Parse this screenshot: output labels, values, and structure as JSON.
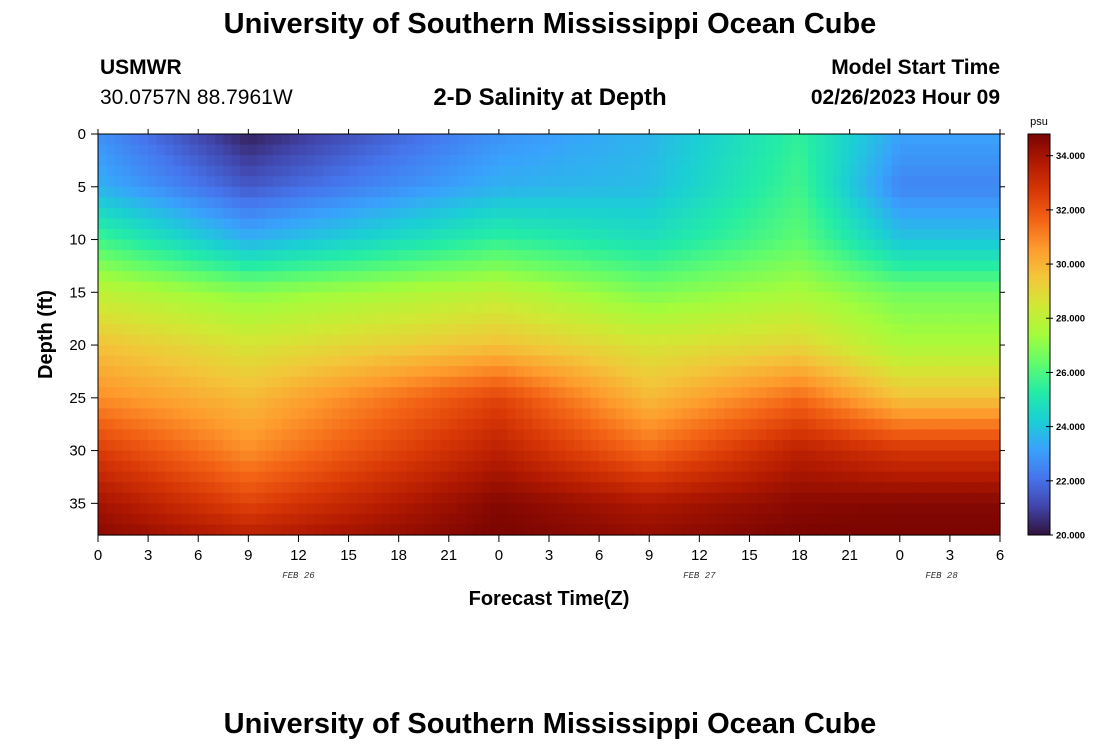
{
  "page": {
    "title_top": "University of Southern Mississippi Ocean Cube",
    "title_bottom": "University of Southern Mississippi Ocean Cube",
    "station": "USMWR",
    "coords": "30.0757N  88.7961W",
    "subtitle": "2-D Salinity at Depth",
    "model_label": "Model Start Time",
    "model_time": "02/26/2023 Hour 09"
  },
  "colors": {
    "colormap": [
      "#30123b",
      "#4145ab",
      "#4675ed",
      "#39a2fc",
      "#1bcfd4",
      "#24eca6",
      "#61fc6c",
      "#a4fc3b",
      "#d1e834",
      "#f3c63a",
      "#fe9b2d",
      "#f36315",
      "#d93806",
      "#b11901",
      "#7a0402"
    ]
  },
  "chart_data": {
    "type": "heatmap",
    "title": "2-D Salinity at Depth",
    "xlabel": "Forecast Time(Z)",
    "ylabel": "Depth (ft)",
    "x_hours_from_feb26_00z": [
      0,
      54
    ],
    "x_tick_labels": [
      "0",
      "3",
      "6",
      "9",
      "12",
      "15",
      "18",
      "21",
      "0",
      "3",
      "6",
      "9",
      "12",
      "15",
      "18",
      "21",
      "0",
      "3",
      "6"
    ],
    "day_labels": [
      {
        "label": "FEB 26",
        "hour": 12
      },
      {
        "label": "FEB 27",
        "hour": 36
      },
      {
        "label": "FEB 28",
        "hour": 50.5
      }
    ],
    "y_ticks": [
      0,
      5,
      10,
      15,
      20,
      25,
      30,
      35
    ],
    "y_tick_labels": [
      "0",
      "5",
      "10",
      "15",
      "20",
      "25",
      "30",
      "35"
    ],
    "ylim": [
      0,
      38
    ],
    "colorbar": {
      "unit": "psu",
      "range": [
        20,
        34.8
      ],
      "ticks": [
        20,
        22,
        24,
        26,
        28,
        30,
        32,
        34
      ],
      "tick_labels": [
        "20.000",
        "22.000",
        "24.000",
        "26.000",
        "28.000",
        "30.000",
        "32.000",
        "34.000"
      ]
    },
    "depth_profile_samples": [
      {
        "hour": 0,
        "depth_ft": [
          0,
          5,
          10,
          15,
          20,
          25,
          30,
          35,
          38
        ],
        "salinity_psu": [
          22.8,
          23.5,
          25.8,
          28.0,
          29.6,
          30.8,
          32.6,
          34.0,
          34.5
        ]
      },
      {
        "hour": 9,
        "depth_ft": [
          0,
          5,
          10,
          15,
          20,
          25,
          30,
          35,
          38
        ],
        "salinity_psu": [
          20.3,
          21.5,
          23.5,
          27.0,
          28.6,
          29.8,
          30.8,
          32.4,
          33.5
        ]
      },
      {
        "hour": 24,
        "depth_ft": [
          0,
          5,
          10,
          15,
          20,
          25,
          30,
          35,
          38
        ],
        "salinity_psu": [
          22.8,
          23.5,
          25.5,
          28.0,
          29.6,
          32.4,
          33.5,
          34.6,
          34.8
        ]
      },
      {
        "hour": 33,
        "depth_ft": [
          0,
          5,
          10,
          15,
          20,
          25,
          30,
          35,
          38
        ],
        "salinity_psu": [
          23.6,
          23.8,
          24.8,
          26.8,
          28.6,
          29.8,
          31.5,
          33.8,
          34.3
        ]
      },
      {
        "hour": 42,
        "depth_ft": [
          0,
          5,
          10,
          15,
          20,
          25,
          30,
          35,
          38
        ],
        "salinity_psu": [
          25.5,
          25.8,
          26.3,
          27.5,
          29.0,
          31.5,
          33.5,
          34.5,
          34.8
        ]
      },
      {
        "hour": 48,
        "depth_ft": [
          0,
          5,
          10,
          15,
          20,
          25,
          30,
          35,
          38
        ],
        "salinity_psu": [
          23.2,
          22.5,
          24.0,
          26.6,
          27.6,
          29.6,
          32.8,
          34.6,
          34.8
        ]
      }
    ]
  }
}
